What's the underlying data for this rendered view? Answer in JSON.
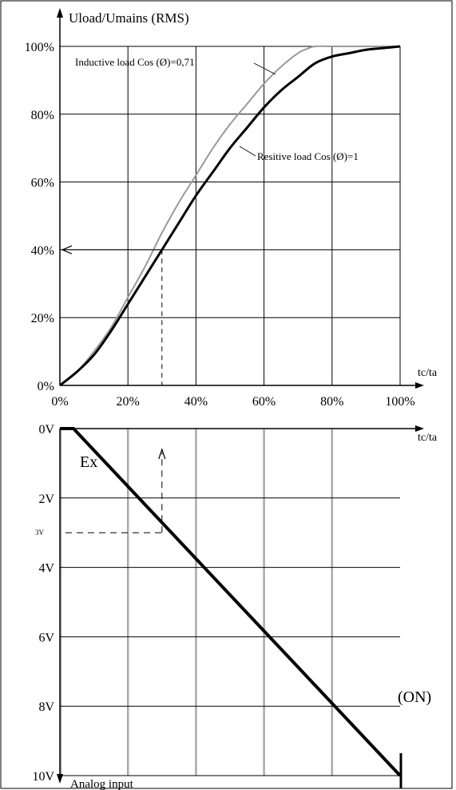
{
  "chart_data": [
    {
      "type": "line",
      "ylabel": "Uload/Umains (RMS)",
      "xlabel": "tc/ta",
      "xlim": [
        0,
        100
      ],
      "ylim": [
        0,
        100
      ],
      "x_ticks": [
        "0%",
        "20%",
        "40%",
        "60%",
        "80%",
        "100%"
      ],
      "y_ticks": [
        "0%",
        "20%",
        "40%",
        "60%",
        "80%",
        "100%"
      ],
      "grid": true,
      "series": [
        {
          "name": "Inductive load Cos (Ø)=0,71",
          "color": "#999999",
          "x": [
            0,
            5,
            10,
            15,
            20,
            25,
            30,
            35,
            40,
            45,
            50,
            55,
            60,
            65,
            70,
            72,
            75,
            80,
            90,
            100
          ],
          "y": [
            0,
            4,
            10,
            17,
            26,
            35,
            45,
            54,
            62,
            70,
            77,
            83,
            89,
            94,
            98,
            99,
            100,
            100,
            100,
            100
          ]
        },
        {
          "name": "Resitive load Cos (Ø)=1",
          "color": "#000000",
          "x": [
            0,
            5,
            10,
            15,
            20,
            25,
            30,
            35,
            40,
            45,
            50,
            55,
            60,
            65,
            70,
            75,
            80,
            85,
            90,
            95,
            100
          ],
          "y": [
            0,
            4,
            9,
            16,
            24,
            32,
            40,
            48,
            56,
            63,
            70,
            76,
            82,
            87,
            91,
            95,
            97,
            98,
            99,
            99.5,
            100
          ]
        }
      ],
      "annotation": {
        "x": 30,
        "y": 40,
        "text": "40%"
      }
    },
    {
      "type": "line",
      "xlabel": "tc/ta",
      "ylabel": "Analog input",
      "xlim": [
        0,
        100
      ],
      "ylim": [
        0,
        10
      ],
      "y_ticks": [
        "0V",
        "2V",
        "4V",
        "6V",
        "8V",
        "10V"
      ],
      "y_axis_inverted": true,
      "grid": true,
      "series": [
        {
          "name": "",
          "color": "#000000",
          "x": [
            0,
            4,
            100
          ],
          "y": [
            0,
            0,
            10
          ]
        }
      ],
      "annotations": [
        {
          "text": "Ex",
          "x": 6,
          "y": 0.5
        },
        {
          "text": "3V",
          "x": 30,
          "y": 3
        },
        {
          "text": "(ON)",
          "x": 100,
          "y": 8
        }
      ]
    }
  ]
}
